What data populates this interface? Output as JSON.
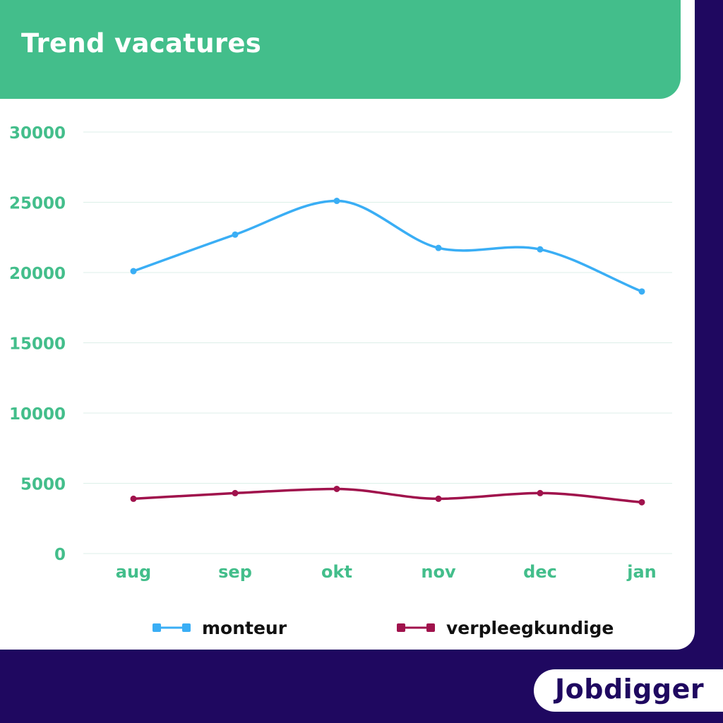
{
  "header": {
    "title": "Trend vacatures"
  },
  "colors": {
    "header_bg": "#43be8b",
    "axis_text": "#43be8b",
    "monteur": "#3aaef5",
    "verpleegkundige": "#a0124c",
    "background": "#1f0860"
  },
  "chart_data": {
    "type": "line",
    "categories": [
      "aug",
      "sep",
      "okt",
      "nov",
      "dec",
      "jan"
    ],
    "series": [
      {
        "name": "monteur",
        "values": [
          20100,
          22700,
          25100,
          21750,
          21650,
          18650
        ]
      },
      {
        "name": "verpleegkundige",
        "values": [
          3900,
          4300,
          4600,
          3900,
          4300,
          3650
        ]
      }
    ],
    "yticks": [
      "0",
      "5000",
      "10000",
      "15000",
      "20000",
      "25000",
      "30000"
    ],
    "ylim": [
      0,
      30000
    ],
    "grid": true,
    "legend_position": "bottom",
    "smooth": true
  },
  "legend": {
    "items": [
      {
        "label": "monteur",
        "icon": "line-square-marker-icon"
      },
      {
        "label": "verpleegkundige",
        "icon": "line-square-marker-icon"
      }
    ]
  },
  "logo": {
    "text": "Jobdigger"
  }
}
